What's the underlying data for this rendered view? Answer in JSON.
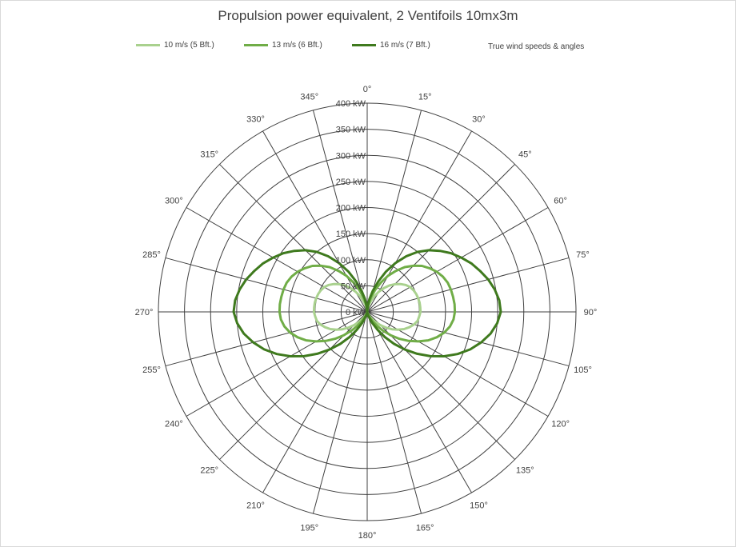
{
  "chart_data": {
    "type": "radar",
    "title": "Propulsion power equivalent, 2 Ventifoils 10mx3m",
    "legend_note": "True wind speeds & angles",
    "legend_position": "top",
    "grid": true,
    "r_range": [
      0,
      400
    ],
    "r_unit": "kW",
    "r_ticks": [
      {
        "value": 0,
        "label": "0 kW"
      },
      {
        "value": 50,
        "label": "50 kW"
      },
      {
        "value": 100,
        "label": "100 kW"
      },
      {
        "value": 150,
        "label": "150 kW"
      },
      {
        "value": 200,
        "label": "200 kW"
      },
      {
        "value": 250,
        "label": "250 kW"
      },
      {
        "value": 300,
        "label": "300 kW"
      },
      {
        "value": 350,
        "label": "350 kW"
      },
      {
        "value": 400,
        "label": "400 kW"
      }
    ],
    "angle_labels": [
      "0°",
      "15°",
      "30°",
      "45°",
      "60°",
      "75°",
      "90°",
      "105°",
      "120°",
      "135°",
      "150°",
      "165°",
      "180°",
      "195°",
      "210°",
      "225°",
      "240°",
      "255°",
      "270°",
      "285°",
      "300°",
      "315°",
      "330°",
      "345°"
    ],
    "angles_deg": [
      0,
      5,
      10,
      15,
      20,
      25,
      30,
      35,
      40,
      45,
      50,
      55,
      60,
      65,
      70,
      75,
      80,
      85,
      90,
      95,
      100,
      105,
      110,
      115,
      120,
      125,
      130,
      135,
      140,
      145,
      150,
      155,
      160,
      165,
      170,
      175,
      180,
      185,
      190,
      195,
      200,
      205,
      210,
      215,
      220,
      225,
      230,
      235,
      240,
      245,
      250,
      255,
      260,
      265,
      270,
      275,
      280,
      285,
      290,
      295,
      300,
      305,
      310,
      315,
      320,
      325,
      330,
      335,
      340,
      345,
      350,
      355
    ],
    "series": [
      {
        "name": "10 m/s (5 Bft.)",
        "color": "#a9d18e",
        "values": [
          0,
          3,
          8,
          15,
          24,
          34,
          45,
          56,
          66,
          75,
          83,
          90,
          95,
          98,
          100,
          101,
          102,
          102,
          102,
          100,
          98,
          93,
          86,
          78,
          68,
          58,
          47,
          36,
          26,
          18,
          11,
          6,
          3,
          1,
          0,
          0,
          0,
          0,
          0,
          1,
          3,
          6,
          11,
          18,
          26,
          36,
          47,
          58,
          68,
          78,
          86,
          93,
          98,
          100,
          102,
          102,
          102,
          101,
          100,
          98,
          95,
          90,
          83,
          75,
          66,
          56,
          45,
          34,
          24,
          15,
          8,
          3
        ]
      },
      {
        "name": "13 m/s (6 Bft.)",
        "color": "#70ad47",
        "values": [
          0,
          7,
          17,
          30,
          45,
          62,
          80,
          96,
          112,
          125,
          137,
          146,
          154,
          160,
          164,
          166,
          167,
          168,
          168,
          166,
          161,
          153,
          142,
          129,
          113,
          97,
          80,
          63,
          47,
          33,
          21,
          11,
          5,
          2,
          0,
          0,
          0,
          0,
          0,
          2,
          5,
          11,
          21,
          33,
          47,
          63,
          80,
          97,
          113,
          129,
          142,
          153,
          161,
          166,
          168,
          168,
          167,
          166,
          164,
          160,
          154,
          146,
          137,
          125,
          112,
          96,
          80,
          62,
          45,
          30,
          17,
          7
        ]
      },
      {
        "name": "16 m/s (7 Bft.)",
        "color": "#3f7a1e",
        "values": [
          0,
          10,
          25,
          42,
          62,
          85,
          108,
          130,
          150,
          167,
          182,
          196,
          208,
          220,
          230,
          240,
          248,
          254,
          256,
          250,
          240,
          226,
          210,
          191,
          170,
          148,
          125,
          102,
          80,
          59,
          40,
          24,
          12,
          5,
          1,
          0,
          0,
          0,
          1,
          5,
          12,
          24,
          40,
          59,
          80,
          102,
          125,
          148,
          170,
          191,
          210,
          226,
          240,
          250,
          256,
          254,
          248,
          240,
          230,
          220,
          208,
          196,
          182,
          167,
          150,
          130,
          108,
          85,
          62,
          42,
          25,
          10
        ]
      }
    ]
  }
}
